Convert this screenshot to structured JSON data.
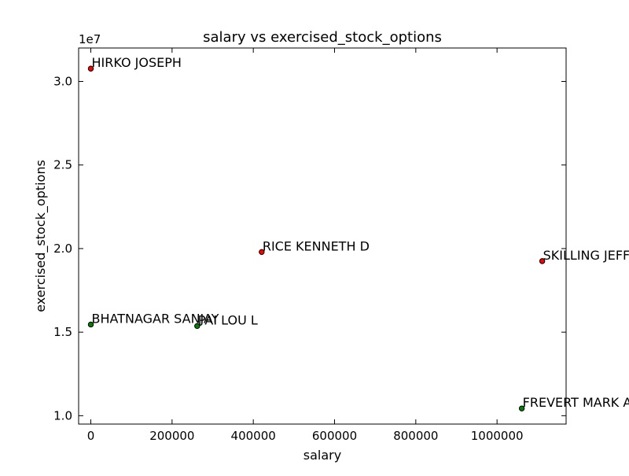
{
  "chart_data": {
    "type": "scatter",
    "title": "salary vs exercised_stock_options",
    "xlabel": "salary",
    "ylabel": "exercised_stock_options",
    "y_offset_label": "1e7",
    "xlim": [
      -30000,
      1170000
    ],
    "ylim": [
      9500000,
      32000000
    ],
    "xticks": [
      0,
      200000,
      400000,
      600000,
      800000,
      1000000
    ],
    "xtick_labels": [
      "0",
      "200000",
      "400000",
      "600000",
      "800000",
      "1000000"
    ],
    "yticks": [
      10000000,
      15000000,
      20000000,
      25000000,
      30000000
    ],
    "ytick_labels": [
      "1.0",
      "1.5",
      "2.0",
      "2.5",
      "3.0"
    ],
    "grid": false,
    "points": [
      {
        "label": "HIRKO JOSEPH",
        "x": 0,
        "y": 30766064,
        "color": "#ff0000"
      },
      {
        "label": "RICE KENNETH D",
        "x": 420636,
        "y": 19794175,
        "color": "#ff0000"
      },
      {
        "label": "SKILLING JEFFREY K",
        "x": 1111258,
        "y": 19250000,
        "color": "#ff0000"
      },
      {
        "label": "BHATNAGAR SANJAY",
        "x": 0,
        "y": 15456290,
        "color": "#008000"
      },
      {
        "label": "PAI LOU L",
        "x": 261879,
        "y": 15364167,
        "color": "#008000"
      },
      {
        "label": "FREVERT MARK A",
        "x": 1060932,
        "y": 10433518,
        "color": "#008000"
      }
    ]
  }
}
